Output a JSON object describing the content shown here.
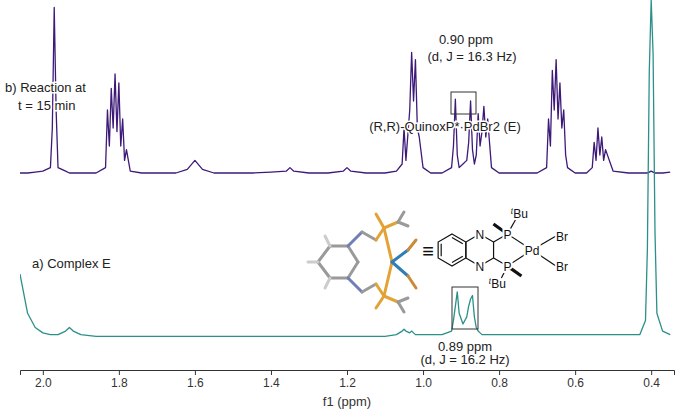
{
  "chart_data": {
    "type": "line",
    "xlabel": "f1 (ppm)",
    "xlim": [
      2.06,
      0.34
    ],
    "xticks": [
      {
        "value": 2,
        "label": "2.0"
      },
      1.8,
      1.6,
      1.4,
      1.2,
      {
        "value": 1,
        "label": "1.0"
      },
      0.8,
      0.6,
      0.4
    ],
    "ylim": [
      0,
      100
    ],
    "grid": false,
    "tick_labels": "x",
    "x": [
      2.06,
      2.04,
      2.02,
      2.0,
      1.98,
      1.975,
      1.97,
      1.965,
      1.96,
      1.94,
      1.93,
      1.92,
      1.9,
      1.86,
      1.835,
      1.83,
      1.825,
      1.82,
      1.815,
      1.81,
      1.805,
      1.8,
      1.795,
      1.79,
      1.785,
      1.78,
      1.77,
      1.74,
      1.7,
      1.65,
      1.62,
      1.6,
      1.58,
      1.55,
      1.5,
      1.45,
      1.4,
      1.36,
      1.35,
      1.34,
      1.3,
      1.25,
      1.21,
      1.2,
      1.19,
      1.15,
      1.1,
      1.07,
      1.055,
      1.05,
      1.045,
      1.035,
      1.03,
      1.025,
      1.02,
      1.015,
      1.01,
      1.0,
      0.98,
      0.95,
      0.925,
      0.92,
      0.915,
      0.91,
      0.905,
      0.895,
      0.885,
      0.88,
      0.875,
      0.87,
      0.865,
      0.86,
      0.855,
      0.85,
      0.845,
      0.84,
      0.835,
      0.83,
      0.82,
      0.8,
      0.75,
      0.7,
      0.675,
      0.67,
      0.665,
      0.66,
      0.655,
      0.65,
      0.645,
      0.64,
      0.635,
      0.63,
      0.625,
      0.62,
      0.6,
      0.57,
      0.555,
      0.55,
      0.545,
      0.54,
      0.535,
      0.53,
      0.525,
      0.52,
      0.5,
      0.46,
      0.43,
      0.415,
      0.41,
      0.405,
      0.4,
      0.395,
      0.39,
      0.385,
      0.37,
      0.35
    ],
    "series": [
      {
        "color": "#3d1a78",
        "values": [
          5,
          5,
          5.5,
          6,
          8,
          30,
          97,
          40,
          8,
          6,
          5,
          5,
          5,
          5,
          8,
          40,
          20,
          52,
          30,
          60,
          28,
          55,
          20,
          35,
          12,
          18,
          6,
          5,
          5,
          5,
          7,
          12,
          7,
          5,
          5,
          5,
          5.5,
          6,
          8,
          6,
          5,
          5,
          6,
          8,
          6,
          5,
          5,
          6,
          10,
          30,
          12,
          40,
          72,
          45,
          68,
          30,
          25,
          8,
          5,
          5,
          8,
          20,
          46,
          15,
          8,
          10,
          12,
          22,
          45,
          18,
          10,
          15,
          38,
          20,
          28,
          42,
          25,
          35,
          8,
          5,
          5,
          5,
          8,
          35,
          20,
          62,
          40,
          68,
          35,
          55,
          30,
          40,
          15,
          8,
          5,
          5,
          8,
          22,
          12,
          30,
          15,
          25,
          12,
          18,
          6,
          5,
          5,
          5,
          5,
          5.5,
          6,
          5.5,
          5,
          5,
          5,
          5.5
        ]
      },
      {
        "color": "#2b9089",
        "values": [
          23,
          12,
          8,
          6.5,
          6,
          6,
          6,
          6,
          6,
          7,
          8,
          7,
          6,
          5.5,
          5.5,
          5.5,
          5.5,
          5.5,
          5.5,
          5.5,
          5.5,
          5.5,
          5.5,
          5.5,
          5.5,
          5.5,
          5.5,
          5.5,
          5.5,
          5.5,
          5.5,
          5.5,
          5.5,
          5.5,
          5.5,
          5.5,
          5.5,
          5.5,
          5.5,
          5.5,
          5.5,
          5.5,
          5.5,
          5.5,
          5.5,
          5.5,
          5.5,
          6,
          7,
          7.5,
          7,
          6.5,
          7,
          6.5,
          6,
          6,
          6,
          6,
          6,
          6,
          7,
          10,
          14,
          18,
          12,
          9,
          11,
          14,
          16,
          17,
          11,
          8,
          7,
          6.5,
          6,
          6,
          6,
          6,
          6,
          6,
          6,
          6,
          6,
          6,
          6,
          6,
          6,
          6,
          6,
          6,
          6,
          6,
          6,
          6,
          6,
          6,
          6,
          6,
          6,
          6,
          6,
          6,
          6,
          6,
          6,
          6,
          6,
          10,
          30,
          80,
          100,
          85,
          35,
          12,
          7,
          6
        ]
      }
    ],
    "annotations": [
      "0.90 ppm",
      "(d, J = 16.3 Hz)",
      "(R,R)-QuinoxP*·PdBr2 (E)",
      "b) Reaction at",
      "t = 15 min",
      "a) Complex E",
      "0.89 ppm",
      "(d, J = 16.2 Hz)"
    ],
    "structure_labels": {
      "atoms": [
        "N",
        "N",
        "P",
        "P",
        "Pd",
        "Br",
        "Br"
      ],
      "substituents": [
        "tBu",
        "tBu"
      ],
      "equiv": "≡"
    }
  }
}
